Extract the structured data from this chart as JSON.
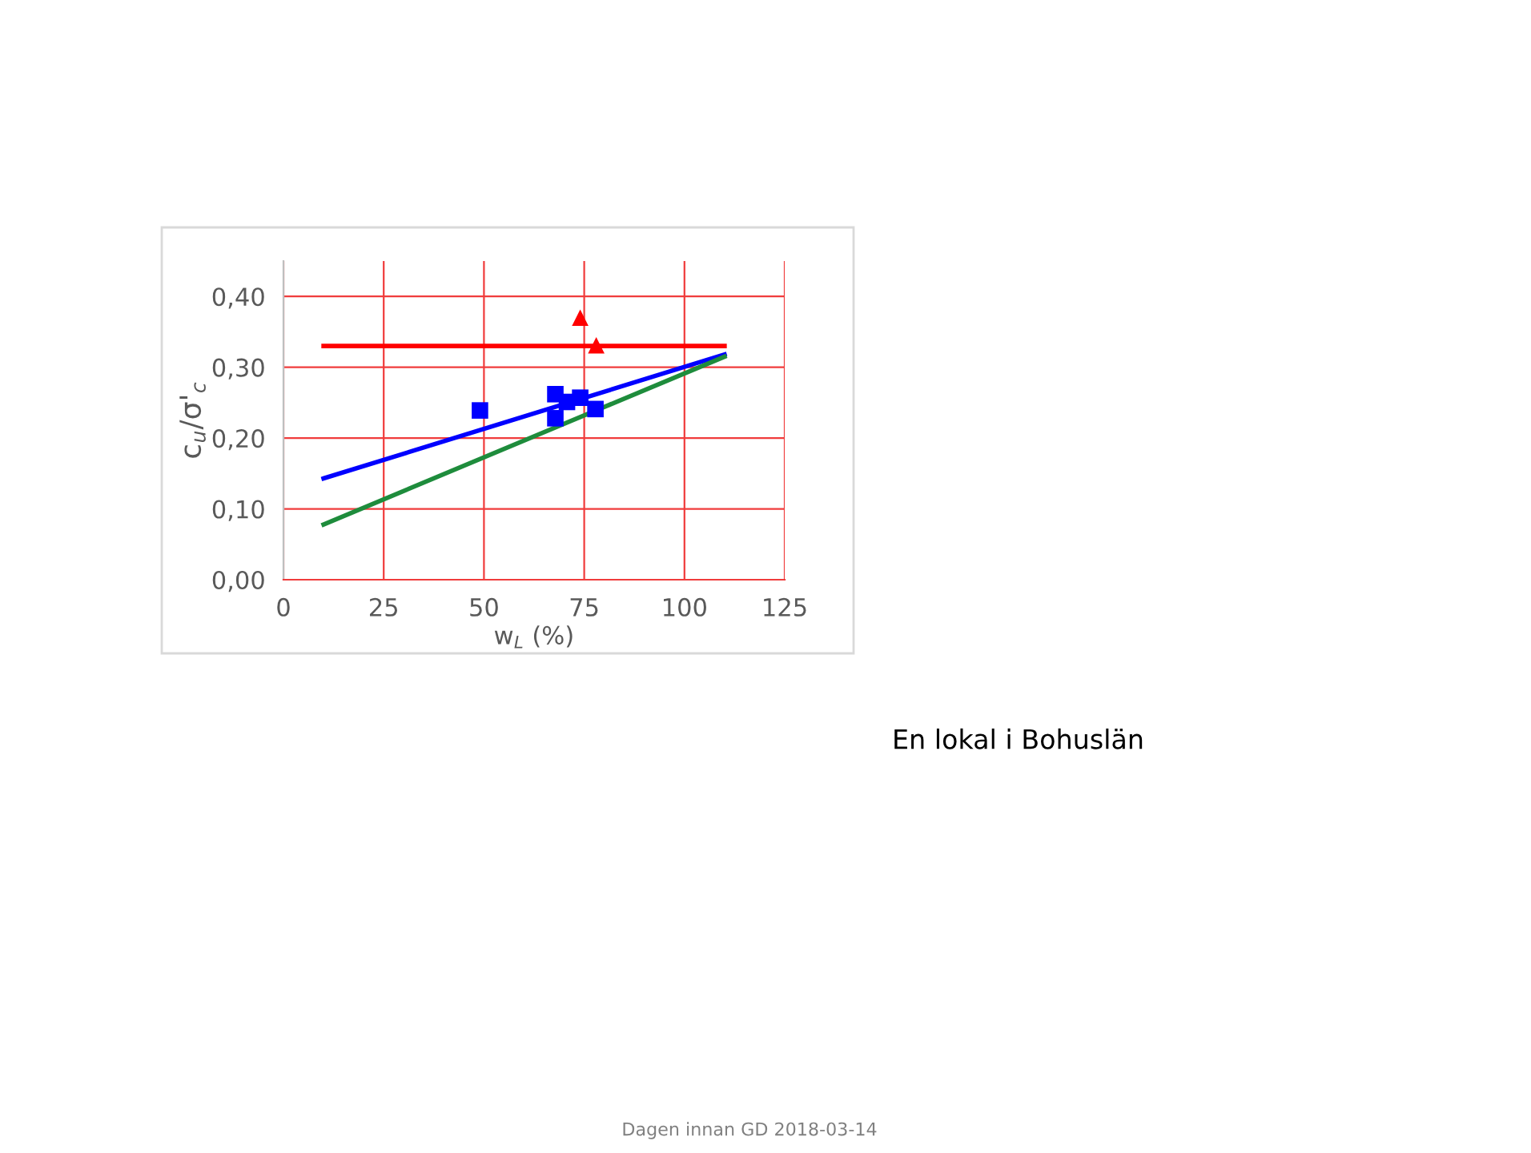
{
  "chart_data": {
    "type": "scatter",
    "xlabel": "w$_{L}$ (%)",
    "ylabel": "c$_{u}$/σ'$_{c}$",
    "xlim": [
      0,
      125
    ],
    "xticks": [
      0,
      25,
      50,
      75,
      100,
      125
    ],
    "ylim": [
      0,
      0.45
    ],
    "yticks": [
      {
        "value": 0,
        "label": "0,00"
      },
      {
        "value": 0.1,
        "label": "0,10"
      },
      {
        "value": 0.2,
        "label": "0,20"
      },
      {
        "value": 0.3,
        "label": "0,30"
      },
      {
        "value": 0.4,
        "label": "0,40"
      }
    ],
    "grid": true,
    "legend": false,
    "series": [
      {
        "type": "line",
        "color": "#ff0000",
        "x": [
          10,
          110
        ],
        "values": [
          0.33,
          0.33
        ],
        "marker": "none"
      },
      {
        "type": "line",
        "color": "#0000ff",
        "x": [
          10,
          110
        ],
        "values": [
          0.143,
          0.318
        ],
        "marker": "none"
      },
      {
        "type": "line",
        "color": "#1e8c3c",
        "x": [
          10,
          110
        ],
        "values": [
          0.078,
          0.315
        ],
        "marker": "none"
      },
      {
        "color": "#0000ff",
        "x": [
          49,
          67.8,
          67.8,
          70.7,
          74,
          77.8
        ],
        "values": [
          0.239,
          0.262,
          0.228,
          0.251,
          0.257,
          0.241
        ],
        "marker": "square"
      },
      {
        "color": "#ff0000",
        "x": [
          74,
          78
        ],
        "values": [
          0.37,
          0.331
        ],
        "marker": "triangle"
      }
    ],
    "annotations": [
      "En lokal i Bohuslän",
      "Dagen innan GD 2018-03-14"
    ]
  }
}
